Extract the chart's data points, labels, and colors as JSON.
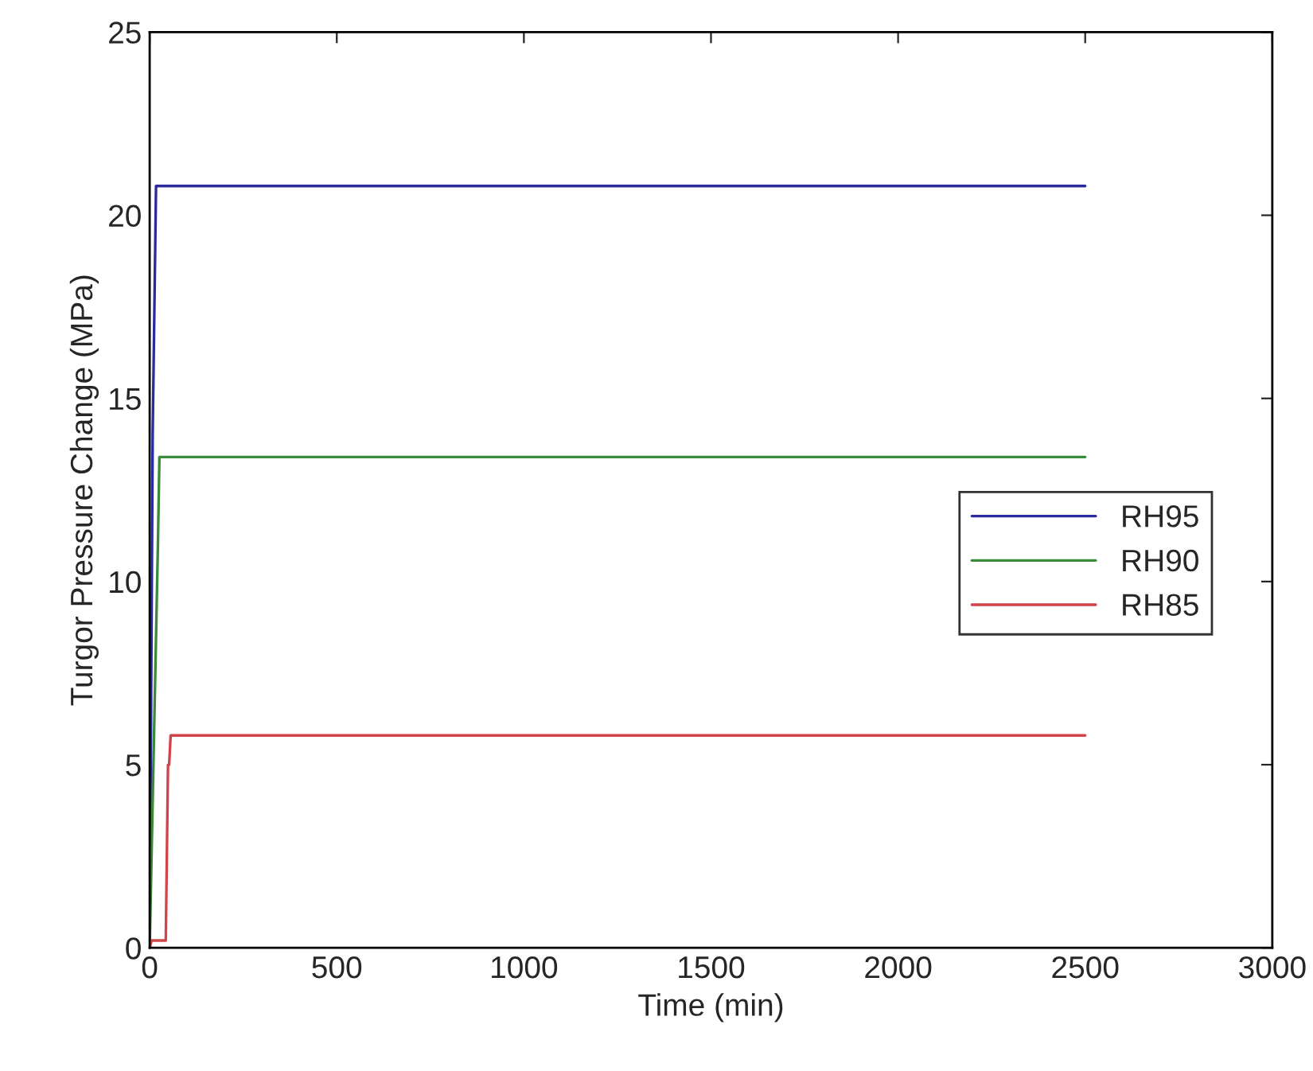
{
  "chart_data": {
    "type": "line",
    "xlabel": "Time (min)",
    "ylabel": "Turgor Pressure Change (MPa)",
    "series": [
      {
        "name": "RH95",
        "color": "#2b2b9e",
        "x": [
          0,
          8,
          17,
          2500
        ],
        "values": [
          0,
          14,
          20.8,
          20.8
        ]
      },
      {
        "name": "RH90",
        "color": "#3a8a3a",
        "x": [
          0,
          22,
          26,
          2500
        ],
        "values": [
          0,
          11,
          13.4,
          13.4
        ]
      },
      {
        "name": "RH85",
        "color": "#d0444a",
        "x": [
          0,
          5,
          43,
          49,
          52,
          56,
          2500
        ],
        "values": [
          0,
          0.2,
          0.2,
          5,
          5,
          5.8,
          5.8
        ]
      }
    ],
    "xlim": [
      0,
      3000
    ],
    "xticks": [
      0,
      500,
      1000,
      1500,
      2000,
      2500,
      3000
    ],
    "ylim": [
      0,
      25
    ],
    "yticks": [
      0,
      5,
      10,
      15,
      20,
      25
    ],
    "legend": "right",
    "grid": false
  }
}
